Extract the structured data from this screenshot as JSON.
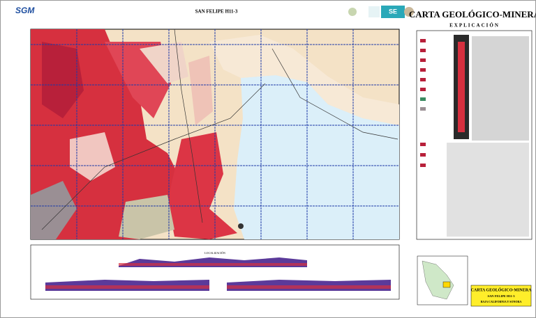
{
  "header": {
    "logo": "SGM",
    "title": "SAN FELIPE H11-3",
    "agency": "SE"
  },
  "sidebar": {
    "title": "CARTA GEOLÓGICO-MINERA",
    "subtitle": "EXPLICACIÓN"
  },
  "bottom": {
    "sections_title": "LOCALIZACIÓN"
  },
  "title_block": {
    "title": "CARTA GEOLÓGICO-MINERA",
    "sheet": "SAN FELIPE H11-3",
    "states": "BAJA CALIFORNIA Y SONORA"
  }
}
